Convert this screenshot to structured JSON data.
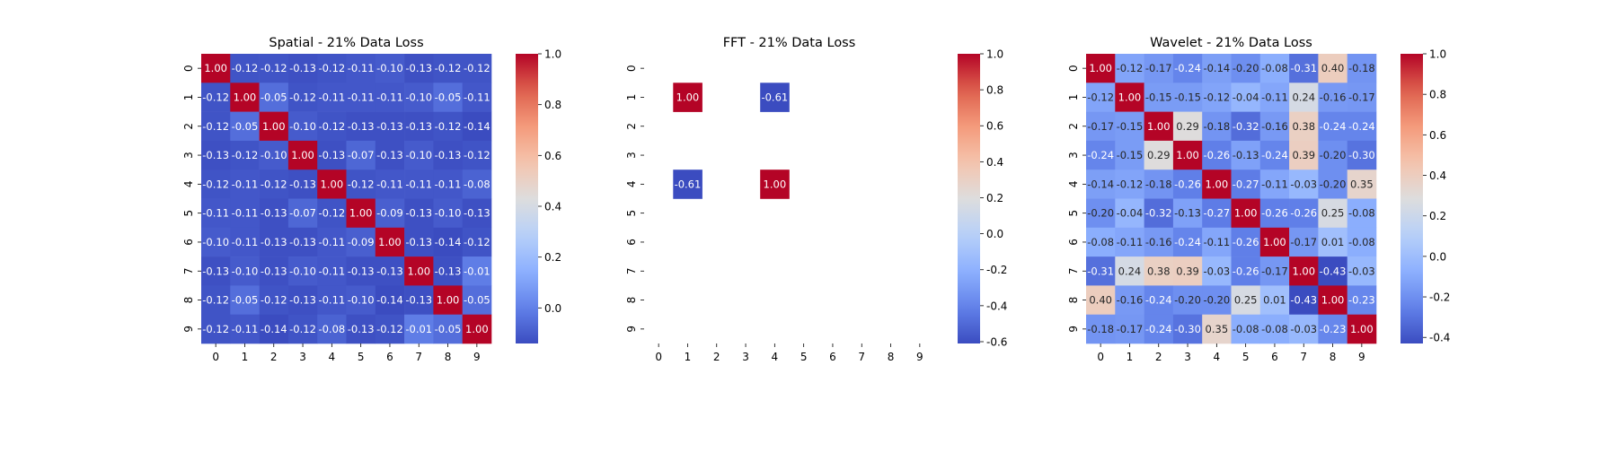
{
  "chart_data": [
    {
      "type": "heatmap",
      "title": "Spatial - 21% Data Loss",
      "x_ticks": [
        "0",
        "1",
        "2",
        "3",
        "4",
        "5",
        "6",
        "7",
        "8",
        "9"
      ],
      "y_ticks": [
        "0",
        "1",
        "2",
        "3",
        "4",
        "5",
        "6",
        "7",
        "8",
        "9"
      ],
      "colormap": "coolwarm",
      "vmin": -0.14,
      "vmax": 1.0,
      "colorbar_ticks": [
        "0.0",
        "0.2",
        "0.4",
        "0.6",
        "0.8",
        "1.0"
      ],
      "matrix": [
        [
          1.0,
          -0.12,
          -0.12,
          -0.13,
          -0.12,
          -0.11,
          -0.1,
          -0.13,
          -0.12,
          -0.12
        ],
        [
          -0.12,
          1.0,
          -0.05,
          -0.12,
          -0.11,
          -0.11,
          -0.11,
          -0.1,
          -0.05,
          -0.11
        ],
        [
          -0.12,
          -0.05,
          1.0,
          -0.1,
          -0.12,
          -0.13,
          -0.13,
          -0.13,
          -0.12,
          -0.14
        ],
        [
          -0.13,
          -0.12,
          -0.1,
          1.0,
          -0.13,
          -0.07,
          -0.13,
          -0.1,
          -0.13,
          -0.12
        ],
        [
          -0.12,
          -0.11,
          -0.12,
          -0.13,
          1.0,
          -0.12,
          -0.11,
          -0.11,
          -0.11,
          -0.08
        ],
        [
          -0.11,
          -0.11,
          -0.13,
          -0.07,
          -0.12,
          1.0,
          -0.09,
          -0.13,
          -0.1,
          -0.13
        ],
        [
          -0.1,
          -0.11,
          -0.13,
          -0.13,
          -0.11,
          -0.09,
          1.0,
          -0.13,
          -0.14,
          -0.12
        ],
        [
          -0.13,
          -0.1,
          -0.13,
          -0.1,
          -0.11,
          -0.13,
          -0.13,
          1.0,
          -0.13,
          -0.01
        ],
        [
          -0.12,
          -0.05,
          -0.12,
          -0.13,
          -0.11,
          -0.1,
          -0.14,
          -0.13,
          1.0,
          -0.05
        ],
        [
          -0.12,
          -0.11,
          -0.14,
          -0.12,
          -0.08,
          -0.13,
          -0.12,
          -0.01,
          -0.05,
          1.0
        ]
      ]
    },
    {
      "type": "heatmap",
      "title": "FFT - 21% Data Loss",
      "x_ticks": [
        "0",
        "1",
        "2",
        "3",
        "4",
        "5",
        "6",
        "7",
        "8",
        "9"
      ],
      "y_ticks": [
        "0",
        "1",
        "2",
        "3",
        "4",
        "5",
        "6",
        "7",
        "8",
        "9"
      ],
      "colormap": "coolwarm",
      "vmin": -0.61,
      "vmax": 1.0,
      "colorbar_ticks": [
        "-0.6",
        "-0.4",
        "-0.2",
        "0.0",
        "0.2",
        "0.4",
        "0.6",
        "0.8",
        "1.0"
      ],
      "matrix": [
        [
          null,
          null,
          null,
          null,
          null,
          null,
          null,
          null,
          null,
          null
        ],
        [
          null,
          1.0,
          null,
          null,
          -0.61,
          null,
          null,
          null,
          null,
          null
        ],
        [
          null,
          null,
          null,
          null,
          null,
          null,
          null,
          null,
          null,
          null
        ],
        [
          null,
          null,
          null,
          null,
          null,
          null,
          null,
          null,
          null,
          null
        ],
        [
          null,
          -0.61,
          null,
          null,
          1.0,
          null,
          null,
          null,
          null,
          null
        ],
        [
          null,
          null,
          null,
          null,
          null,
          null,
          null,
          null,
          null,
          null
        ],
        [
          null,
          null,
          null,
          null,
          null,
          null,
          null,
          null,
          null,
          null
        ],
        [
          null,
          null,
          null,
          null,
          null,
          null,
          null,
          null,
          null,
          null
        ],
        [
          null,
          null,
          null,
          null,
          null,
          null,
          null,
          null,
          null,
          null
        ],
        [
          null,
          null,
          null,
          null,
          null,
          null,
          null,
          null,
          null,
          null
        ]
      ]
    },
    {
      "type": "heatmap",
      "title": "Wavelet - 21% Data Loss",
      "x_ticks": [
        "0",
        "1",
        "2",
        "3",
        "4",
        "5",
        "6",
        "7",
        "8",
        "9"
      ],
      "y_ticks": [
        "0",
        "1",
        "2",
        "3",
        "4",
        "5",
        "6",
        "7",
        "8",
        "9"
      ],
      "colormap": "coolwarm",
      "vmin": -0.43,
      "vmax": 1.0,
      "colorbar_ticks": [
        "-0.4",
        "-0.2",
        "0.0",
        "0.2",
        "0.4",
        "0.6",
        "0.8",
        "1.0"
      ],
      "matrix": [
        [
          1.0,
          -0.12,
          -0.17,
          -0.24,
          -0.14,
          -0.2,
          -0.08,
          -0.31,
          0.4,
          -0.18
        ],
        [
          -0.12,
          1.0,
          -0.15,
          -0.15,
          -0.12,
          -0.04,
          -0.11,
          0.24,
          -0.16,
          -0.17
        ],
        [
          -0.17,
          -0.15,
          1.0,
          0.29,
          -0.18,
          -0.32,
          -0.16,
          0.38,
          -0.24,
          -0.24
        ],
        [
          -0.24,
          -0.15,
          0.29,
          1.0,
          -0.26,
          -0.13,
          -0.24,
          0.39,
          -0.2,
          -0.3
        ],
        [
          -0.14,
          -0.12,
          -0.18,
          -0.26,
          1.0,
          -0.27,
          -0.11,
          -0.03,
          -0.2,
          0.35
        ],
        [
          -0.2,
          -0.04,
          -0.32,
          -0.13,
          -0.27,
          1.0,
          -0.26,
          -0.26,
          0.25,
          -0.08
        ],
        [
          -0.08,
          -0.11,
          -0.16,
          -0.24,
          -0.11,
          -0.26,
          1.0,
          -0.17,
          0.01,
          -0.08
        ],
        [
          -0.31,
          0.24,
          0.38,
          0.39,
          -0.03,
          -0.26,
          -0.17,
          1.0,
          -0.43,
          -0.03
        ],
        [
          0.4,
          -0.16,
          -0.24,
          -0.2,
          -0.2,
          0.25,
          0.01,
          -0.43,
          1.0,
          -0.23
        ],
        [
          -0.18,
          -0.17,
          -0.24,
          -0.3,
          0.35,
          -0.08,
          -0.08,
          -0.03,
          -0.23,
          1.0
        ]
      ]
    }
  ]
}
